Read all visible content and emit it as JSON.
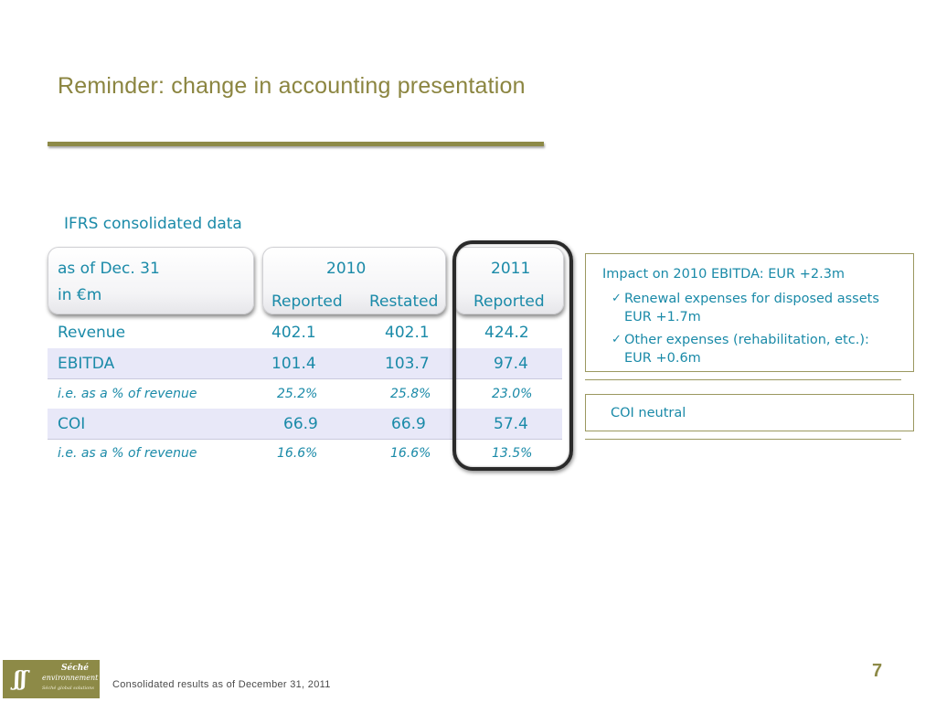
{
  "slide": {
    "title": "Reminder: change in accounting presentation",
    "section_label": "IFRS consolidated data",
    "page_number": "7",
    "footer": "Consolidated results as of December 31, 2011",
    "accent_color": "#8d8a47",
    "text_color": "#1a8aa8"
  },
  "table": {
    "header": {
      "label_line1": "as of Dec. 31",
      "label_line2": "in €m",
      "year_2010": "2010",
      "year_2011": "2011",
      "col1": "Reported",
      "col2": "Restated",
      "col3": "Reported"
    },
    "rows": [
      {
        "label": "Revenue",
        "v1": "402.1",
        "v2": "402.1",
        "v3": "424.2",
        "style": "normal"
      },
      {
        "label": "EBITDA",
        "v1": "101.4",
        "v2": "103.7",
        "v3": "97.4",
        "style": "band"
      },
      {
        "label": "i.e. as a % of revenue",
        "v1": "25.2%",
        "v2": "25.8%",
        "v3": "23.0%",
        "style": "italic"
      },
      {
        "label": "COI",
        "v1": "66.9",
        "v2": "66.9",
        "v3": "57.4",
        "style": "band"
      },
      {
        "label": "i.e. as a % of revenue",
        "v1": "16.6%",
        "v2": "16.6%",
        "v3": "13.5%",
        "style": "italic"
      }
    ]
  },
  "impact": {
    "title": "Impact on 2010 EBITDA: EUR +2.3m",
    "bullets": [
      "Renewal expenses for disposed assets EUR +1.7m",
      "Other expenses (rehabilitation, etc.): EUR +0.6m"
    ],
    "check_icon": "checkmark-icon"
  },
  "coi_note": "COI neutral",
  "logo": {
    "line1": "Séché",
    "line2": "environnement",
    "tagline": "Séché global solutions"
  }
}
